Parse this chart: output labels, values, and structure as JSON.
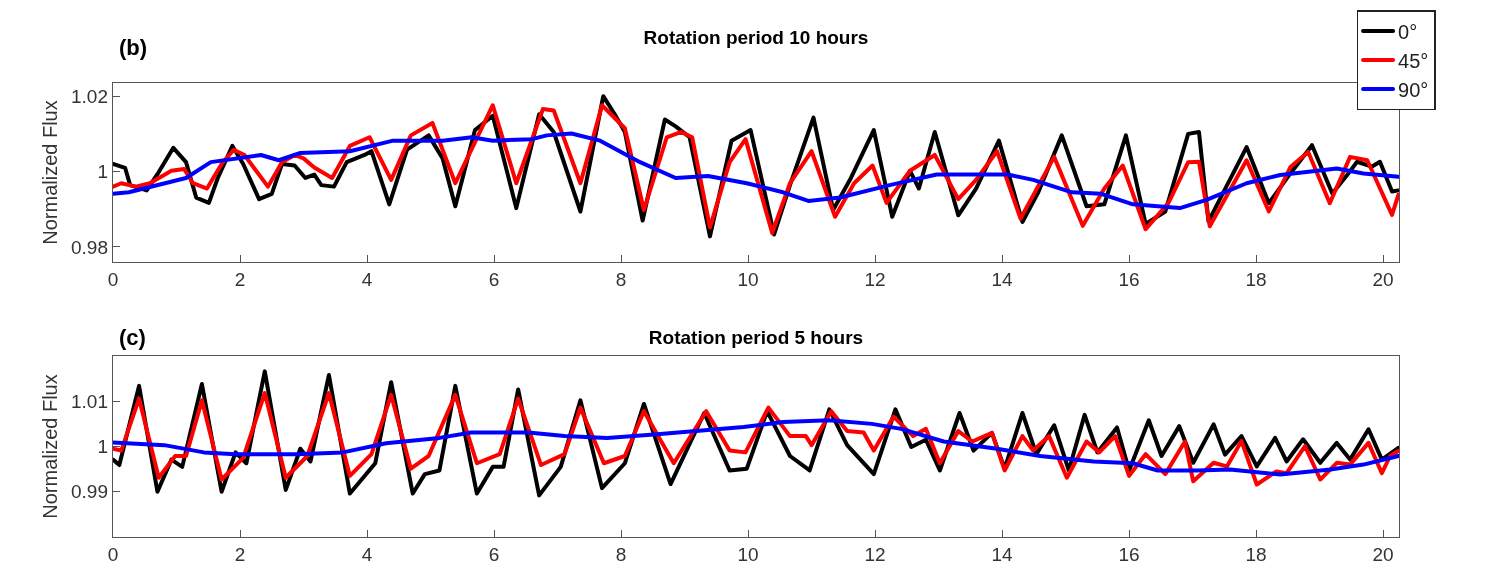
{
  "chart_data": [
    {
      "type": "line",
      "title": "Rotation period 10 hours",
      "ylabel": "Normalized Flux",
      "annotations": [
        "(b)"
      ],
      "xlim": [
        0,
        20.25
      ],
      "ylim": [
        0.976,
        1.0235
      ],
      "xticks": [
        0,
        2,
        4,
        6,
        8,
        10,
        12,
        14,
        16,
        18,
        20
      ],
      "yticks": [
        0.98,
        1,
        1.02
      ],
      "grid": false,
      "legend": "top right",
      "series": [
        {
          "name": "0°",
          "color": "#000000",
          "x": [
            0,
            0.19,
            0.27,
            0.53,
            0.7,
            0.95,
            1.15,
            1.31,
            1.51,
            1.65,
            1.88,
            2.05,
            2.3,
            2.5,
            2.66,
            2.86,
            3.03,
            3.17,
            3.28,
            3.48,
            3.68,
            3.96,
            4.07,
            4.35,
            4.63,
            4.97,
            5.19,
            5.39,
            5.7,
            5.98,
            6.35,
            6.71,
            6.94,
            7.36,
            7.72,
            7.9,
            8.06,
            8.34,
            8.69,
            8.86,
            9.08,
            9.4,
            9.74,
            10.04,
            10.41,
            10.66,
            11.03,
            11.34,
            11.62,
            11.98,
            12.27,
            12.55,
            12.69,
            12.94,
            13.31,
            13.59,
            13.95,
            14.32,
            14.57,
            14.94,
            15.33,
            15.61,
            15.95,
            16.26,
            16.57,
            16.93,
            17.1,
            17.25,
            17.85,
            18.2,
            18.54,
            18.88,
            19.2,
            19.43,
            19.59,
            19.82,
            19.95,
            20.14,
            20.24
          ],
          "values": [
            1.002,
            1.001,
            0.9964,
            0.995,
            0.9993,
            1.0063,
            1.0025,
            0.9931,
            0.9917,
            0.9983,
            1.0068,
            1.002,
            0.9927,
            0.9941,
            1.002,
            1.0016,
            0.9983,
            0.9992,
            0.9964,
            0.996,
            1.0025,
            1.0044,
            1.0054,
            0.9913,
            1.0058,
            1.0096,
            1.0035,
            0.9908,
            1.011,
            1.0148,
            0.9903,
            1.0152,
            1.0105,
            0.9894,
            1.02,
            1.0152,
            1.0105,
            0.987,
            1.0138,
            1.012,
            1.0091,
            0.9828,
            1.0082,
            1.011,
            0.9833,
            0.9964,
            1.0143,
            0.9898,
            0.9983,
            1.011,
            0.988,
            1.0002,
            0.9955,
            1.0105,
            0.9884,
            0.9955,
            1.0082,
            0.9866,
            0.9945,
            1.0096,
            0.9908,
            0.9913,
            1.0096,
            0.9861,
            0.9894,
            1.01,
            1.0105,
            0.9868,
            1.0065,
            0.9916,
            0.9995,
            1.007,
            0.9942,
            0.999,
            1.0026,
            1.0013,
            1.0026,
            0.9947,
            0.995
          ]
        },
        {
          "name": "45°",
          "color": "#ff0000",
          "x": [
            0,
            0.13,
            0.36,
            0.58,
            0.92,
            1.12,
            1.26,
            1.48,
            1.71,
            1.9,
            2.07,
            2.44,
            2.66,
            2.86,
            3.0,
            3.17,
            3.45,
            3.73,
            4.04,
            4.38,
            4.69,
            5.03,
            5.39,
            5.98,
            6.35,
            6.77,
            6.94,
            7.36,
            7.7,
            8.06,
            8.36,
            8.72,
            8.95,
            9.12,
            9.4,
            9.71,
            9.96,
            10.38,
            10.66,
            11.0,
            11.37,
            11.67,
            11.96,
            12.18,
            12.55,
            12.94,
            13.31,
            13.59,
            13.92,
            14.29,
            14.82,
            15.27,
            15.61,
            15.9,
            16.26,
            16.62,
            16.93,
            17.1,
            17.27,
            17.85,
            18.2,
            18.54,
            18.82,
            19.16,
            19.48,
            19.75,
            20.14,
            20.24
          ],
          "values": [
            0.996,
            0.9969,
            0.996,
            0.9969,
            1.0002,
            1.0007,
            0.9969,
            0.9955,
            1.002,
            1.0058,
            1.0044,
            0.996,
            1.0025,
            1.0044,
            1.0035,
            1.0011,
            0.9983,
            1.0068,
            1.0091,
            0.9978,
            1.0096,
            1.0129,
            0.9969,
            1.0176,
            0.9969,
            1.0166,
            1.0162,
            0.9969,
            1.0176,
            1.0115,
            0.9898,
            1.0091,
            1.0105,
            1.0091,
            0.9852,
            1.0025,
            1.0086,
            0.9837,
            0.9969,
            1.0054,
            0.988,
            0.9969,
            1.0016,
            0.9917,
            1.0002,
            1.0044,
            0.9927,
            0.9978,
            1.0054,
            0.9875,
            1.0039,
            0.9856,
            0.9955,
            1.0016,
            0.9847,
            0.9917,
            1.0025,
            1.0026,
            0.9855,
            1.003,
            0.9894,
            1.0012,
            1.0052,
            0.9916,
            1.0039,
            1.003,
            0.9885,
            0.9938
          ]
        },
        {
          "name": "90°",
          "color": "#0000ff",
          "x": [
            0,
            0.25,
            1.15,
            1.54,
            2.33,
            2.61,
            2.94,
            3.73,
            4.41,
            5.19,
            5.65,
            5.98,
            6.6,
            6.83,
            7.22,
            7.67,
            8.3,
            8.86,
            9.37,
            9.98,
            10.55,
            10.95,
            11.45,
            12.23,
            12.97,
            14.09,
            14.49,
            15.1,
            15.56,
            16.06,
            16.45,
            16.8,
            17.22,
            17.85,
            18.38,
            19.27,
            19.69,
            20.24
          ],
          "values": [
            0.9941,
            0.9945,
            0.9983,
            1.0025,
            1.0044,
            1.003,
            1.0049,
            1.0054,
            1.0082,
            1.0082,
            1.0091,
            1.0082,
            1.0086,
            1.0096,
            1.0101,
            1.0082,
            1.0025,
            0.9983,
            0.9988,
            0.9969,
            0.9945,
            0.9922,
            0.9931,
            0.9964,
            0.9992,
            0.9992,
            0.9978,
            0.9945,
            0.9941,
            0.9913,
            0.9908,
            0.9903,
            0.9925,
            0.9969,
            0.9991,
            1.0008,
            0.9995,
            0.9986
          ]
        }
      ]
    },
    {
      "type": "line",
      "title": "Rotation period 5 hours",
      "ylabel": "Normalized Flux",
      "annotations": [
        "(c)"
      ],
      "xlim": [
        0,
        20.25
      ],
      "ylim": [
        0.98,
        1.02
      ],
      "xticks": [
        0,
        2,
        4,
        6,
        8,
        10,
        12,
        14,
        16,
        18,
        20
      ],
      "yticks": [
        0.99,
        1,
        1.01
      ],
      "grid": false,
      "series": [
        {
          "color": "#000000",
          "x": [
            0,
            0.1,
            0.41,
            0.7,
            0.92,
            1.09,
            1.4,
            1.71,
            1.93,
            2.1,
            2.39,
            2.72,
            2.95,
            3.11,
            3.4,
            3.73,
            4.13,
            4.38,
            4.72,
            4.91,
            5.14,
            5.39,
            5.73,
            5.98,
            6.15,
            6.38,
            6.71,
            7.05,
            7.36,
            7.7,
            8.06,
            8.36,
            8.78,
            9.31,
            9.71,
            9.98,
            10.3,
            10.66,
            10.97,
            11.28,
            11.56,
            11.98,
            12.32,
            12.57,
            12.8,
            13.02,
            13.33,
            13.55,
            13.84,
            14.04,
            14.32,
            14.54,
            14.82,
            15.05,
            15.3,
            15.5,
            15.81,
            16.0,
            16.31,
            16.51,
            16.79,
            17.01,
            17.33,
            17.51,
            17.77,
            18.01,
            18.3,
            18.48,
            18.74,
            19.01,
            19.27,
            19.48,
            19.77,
            19.98,
            20.24
          ],
          "values": [
            0.9971,
            0.9959,
            1.0134,
            0.99,
            0.9971,
            0.9955,
            1.0138,
            0.99,
            0.9987,
            0.9963,
            1.0166,
            0.9904,
            0.9995,
            0.9967,
            1.0158,
            0.9896,
            0.9963,
            1.0142,
            0.9896,
            0.9939,
            0.9947,
            1.0134,
            0.9896,
            0.9955,
            0.9955,
            1.0126,
            0.9892,
            0.9955,
            1.0102,
            0.9908,
            0.9963,
            1.0094,
            0.9917,
            1.0074,
            0.9947,
            0.9951,
            1.0078,
            0.9979,
            0.9947,
            1.0082,
            1.0003,
            0.9939,
            1.0082,
            0.9999,
            1.0015,
            0.9947,
            1.0074,
            0.9991,
            1.003,
            0.9951,
            1.0074,
            0.9983,
            1.0047,
            0.9947,
            1.007,
            0.9987,
            1.0042,
            0.9947,
            1.0058,
            0.9979,
            1.0045,
            0.9964,
            1.0049,
            0.9982,
            1.0023,
            0.9956,
            1.0019,
            0.9967,
            1.0016,
            0.9964,
            1.0008,
            0.9971,
            1.0038,
            0.9971,
            0.9997
          ]
        },
        {
          "color": "#ff0000",
          "x": [
            0,
            0.13,
            0.41,
            0.72,
            0.98,
            1.15,
            1.4,
            1.71,
            2.05,
            2.39,
            2.72,
            3.06,
            3.4,
            3.73,
            4.07,
            4.38,
            4.69,
            4.97,
            5.39,
            5.73,
            6.09,
            6.38,
            6.74,
            7.11,
            7.36,
            7.73,
            8.06,
            8.36,
            8.83,
            9.34,
            9.71,
            9.96,
            10.32,
            10.66,
            10.91,
            11.0,
            11.31,
            11.56,
            11.82,
            11.98,
            12.29,
            12.6,
            12.8,
            13.02,
            13.31,
            13.53,
            13.84,
            14.04,
            14.32,
            14.49,
            14.74,
            15.02,
            15.33,
            15.53,
            15.78,
            16.0,
            16.26,
            16.57,
            16.88,
            17.01,
            17.33,
            17.54,
            17.77,
            18.01,
            18.32,
            18.48,
            18.77,
            19.01,
            19.27,
            19.48,
            19.77,
            19.98,
            20.11,
            20.24
          ],
          "values": [
            0.9995,
            0.9991,
            1.0106,
            0.9931,
            0.9979,
            0.9979,
            1.0102,
            0.9927,
            0.9975,
            1.0118,
            0.9931,
            0.9979,
            1.0118,
            0.9935,
            0.9983,
            1.0114,
            0.9951,
            0.9979,
            1.0114,
            0.9963,
            0.9983,
            1.0106,
            0.9959,
            0.9983,
            1.0086,
            0.9963,
            0.9979,
            1.0078,
            0.9963,
            1.0078,
            0.9991,
            0.9987,
            1.0086,
            1.0023,
            1.0023,
            1.0003,
            1.0078,
            1.0034,
            1.0031,
            0.9991,
            1.0066,
            1.0023,
            1.0039,
            0.9963,
            1.0034,
            1.0011,
            1.003,
            0.9947,
            1.0023,
            0.9991,
            1.0023,
            0.9931,
            1.0011,
            0.9987,
            1.0023,
            0.9935,
            0.9983,
            0.9939,
            1.0011,
            0.9923,
            0.9964,
            0.9956,
            1.0012,
            0.9916,
            0.9945,
            0.9941,
            1.0001,
            0.9927,
            0.9964,
            0.996,
            1.0008,
            0.9941,
            0.9979,
            0.999
          ]
        },
        {
          "color": "#0000ff",
          "x": [
            0,
            0.81,
            1.43,
            1.93,
            2.89,
            3.62,
            4.3,
            5.14,
            5.64,
            6.54,
            7.11,
            7.78,
            8.57,
            9.93,
            10.55,
            11.28,
            11.95,
            12.41,
            13.08,
            13.92,
            14.6,
            15.44,
            16.06,
            16.45,
            17.07,
            17.59,
            18.38,
            19.17,
            19.69,
            20.24
          ],
          "values": [
            1.0009,
            1.0003,
            0.9987,
            0.9983,
            0.9983,
            0.9987,
            1.0007,
            1.0019,
            1.0031,
            1.0031,
            1.0023,
            1.0019,
            1.0027,
            1.0043,
            1.0054,
            1.0058,
            1.005,
            1.0039,
            1.0011,
            0.9995,
            0.9979,
            0.9967,
            0.9963,
            0.9947,
            0.9947,
            0.9949,
            0.9938,
            0.9949,
            0.996,
            0.9979
          ]
        }
      ]
    }
  ]
}
